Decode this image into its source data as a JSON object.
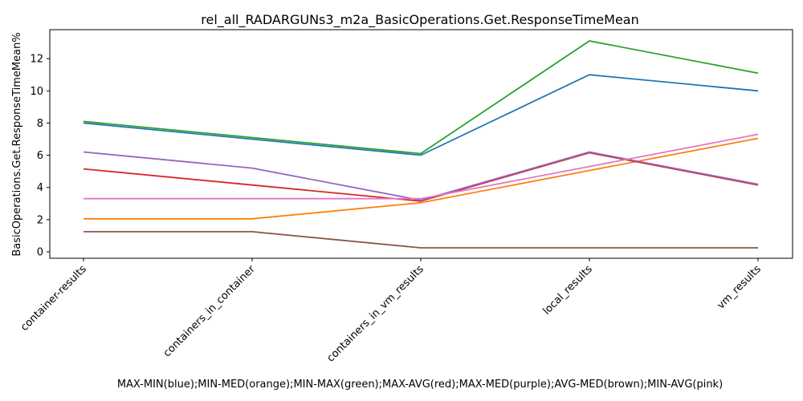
{
  "chart_data": {
    "type": "line",
    "title": "rel_all_RADARGUNs3_m2a_BasicOperations.Get.ResponseTimeMean",
    "xlabel": "MAX-MIN(blue);MIN-MED(orange);MIN-MAX(green);MAX-AVG(red);MAX-MED(purple);AVG-MED(brown);MIN-AVG(pink)",
    "ylabel": "BasicOperations.Get.ResponseTimeMean%",
    "categories": [
      "container-results",
      "containers_in_container",
      "containers_in_vm_results",
      "local_results",
      "vm_results"
    ],
    "yticks": [
      0,
      2,
      4,
      6,
      8,
      10,
      12
    ],
    "ylim": [
      -0.4,
      13.8
    ],
    "grid": false,
    "legend": "none",
    "series": [
      {
        "color": "#1f77b4",
        "values": [
          8.0,
          7.0,
          6.0,
          11.0,
          10.0
        ]
      },
      {
        "color": "#ff7f0e",
        "values": [
          2.05,
          2.05,
          3.05,
          5.05,
          7.05
        ]
      },
      {
        "color": "#2ca02c",
        "values": [
          8.1,
          7.1,
          6.1,
          13.1,
          11.1
        ]
      },
      {
        "color": "#d62728",
        "values": [
          5.15,
          4.15,
          3.15,
          6.15,
          4.15
        ]
      },
      {
        "color": "#9467bd",
        "values": [
          6.2,
          5.2,
          3.2,
          6.2,
          4.2
        ]
      },
      {
        "color": "#8c564b",
        "values": [
          1.25,
          1.25,
          0.25,
          0.25,
          0.25
        ]
      },
      {
        "color": "#e377c2",
        "values": [
          3.3,
          3.3,
          3.3,
          5.3,
          7.3
        ]
      }
    ]
  }
}
